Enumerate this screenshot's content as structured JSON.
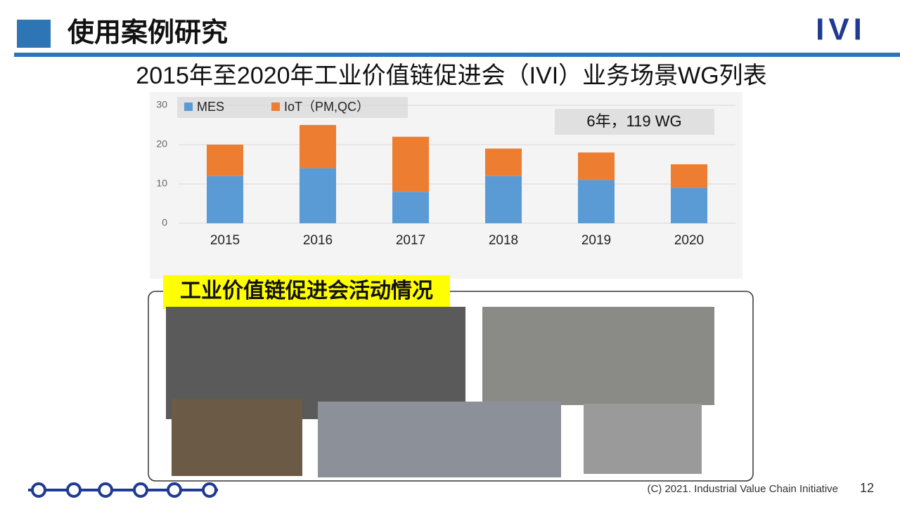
{
  "slide": {
    "header": "使用案例研究",
    "logo": "IVI",
    "photo_caption": "工业价值链促进会活动情况",
    "footer": "(C) 2021. Industrial Value Chain Initiative",
    "page_number": "12"
  },
  "chart_data": {
    "type": "stacked_bar",
    "title": "2015年至2020年工业价值链促进会（IVI）业务场景WG列表",
    "annotation": "6年，119 WG",
    "categories": [
      "2015",
      "2016",
      "2017",
      "2018",
      "2019",
      "2020"
    ],
    "series": [
      {
        "name": "MES",
        "color": "#5b9bd5",
        "values": [
          12,
          14,
          8,
          12,
          11,
          9
        ]
      },
      {
        "name": "IoT（PM,QC）",
        "color": "#ed7d31",
        "values": [
          8,
          11,
          14,
          7,
          7,
          6
        ]
      }
    ],
    "ylim": [
      0,
      30
    ],
    "yticks": [
      0,
      10,
      20,
      30
    ],
    "grid": true
  }
}
